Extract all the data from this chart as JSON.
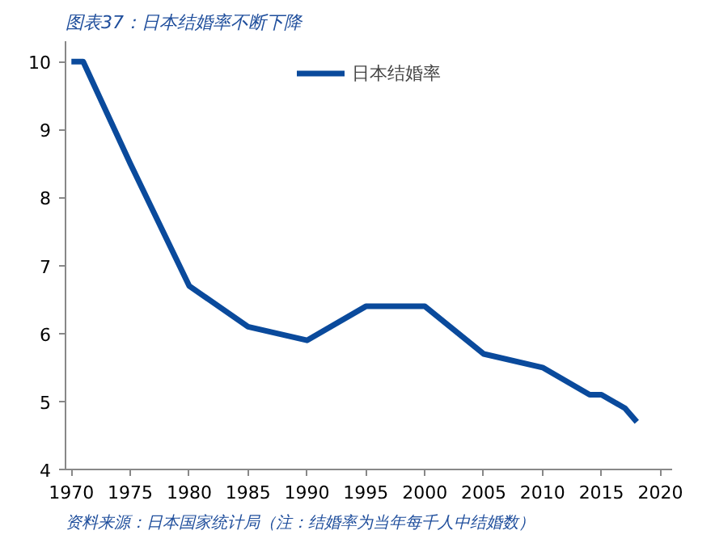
{
  "chart_data": {
    "type": "line",
    "title": "图表37：日本结婚率不断下降",
    "x": [
      1970,
      1971,
      1975,
      1980,
      1985,
      1990,
      1995,
      2000,
      2005,
      2010,
      2014,
      2015,
      2017,
      2018
    ],
    "series": [
      {
        "name": "日本结婚率",
        "color": "#0a4a9c",
        "values": [
          10.0,
          10.0,
          8.5,
          6.7,
          6.1,
          5.9,
          6.4,
          6.4,
          5.7,
          5.5,
          5.1,
          5.1,
          4.9,
          4.7
        ]
      }
    ],
    "xlim": [
      1969.5,
      2021
    ],
    "xticks": [
      1970,
      1975,
      1980,
      1985,
      1990,
      1995,
      2000,
      2005,
      2010,
      2015,
      2020
    ],
    "ylim": [
      4,
      10.3
    ],
    "yticks": [
      4,
      5,
      6,
      7,
      8,
      9,
      10
    ],
    "grid": false,
    "legend": "top",
    "marker": "none",
    "line_style": "solid",
    "annotations": [
      "资料来源：日本国家统计局（注：结婚率为当年每千人中结婚数）"
    ]
  }
}
